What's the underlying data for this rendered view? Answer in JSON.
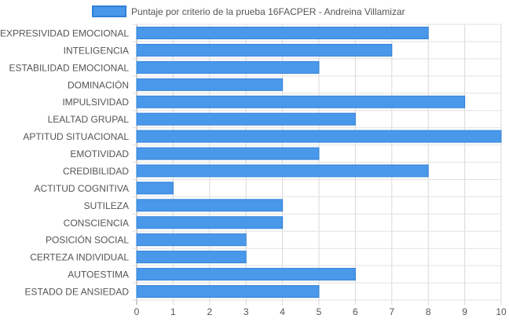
{
  "chart_data": {
    "type": "bar",
    "orientation": "horizontal",
    "categories": [
      "EXPRESIVIDAD EMOCIONAL",
      "INTELIGENCIA",
      "ESTABILIDAD EMOCIONAL",
      "DOMINACIÓN",
      "IMPULSIVIDAD",
      "LEALTAD GRUPAL",
      "APTITUD SITUACIONAL",
      "EMOTIVIDAD",
      "CREDIBILIDAD",
      "ACTITUD COGNITIVA",
      "SUTILEZA",
      "CONSCIENCIA",
      "POSICIÓN SOCIAL",
      "CERTEZA INDIVIDUAL",
      "AUTOESTIMA",
      "ESTADO DE ANSIEDAD"
    ],
    "series": [
      {
        "name": "Puntaje por criterio de la prueba 16FACPER - Andreina Villamizar",
        "values": [
          8,
          7,
          5,
          4,
          9,
          6,
          10,
          5,
          8,
          1,
          4,
          4,
          3,
          3,
          6,
          5
        ],
        "color": "#4a98ea",
        "border_color": "#2f80d8"
      }
    ],
    "xlim": [
      0,
      10
    ],
    "x_ticks": [
      0,
      1,
      2,
      3,
      4,
      5,
      6,
      7,
      8,
      9,
      10
    ],
    "grid": true,
    "legend_position": "top"
  }
}
